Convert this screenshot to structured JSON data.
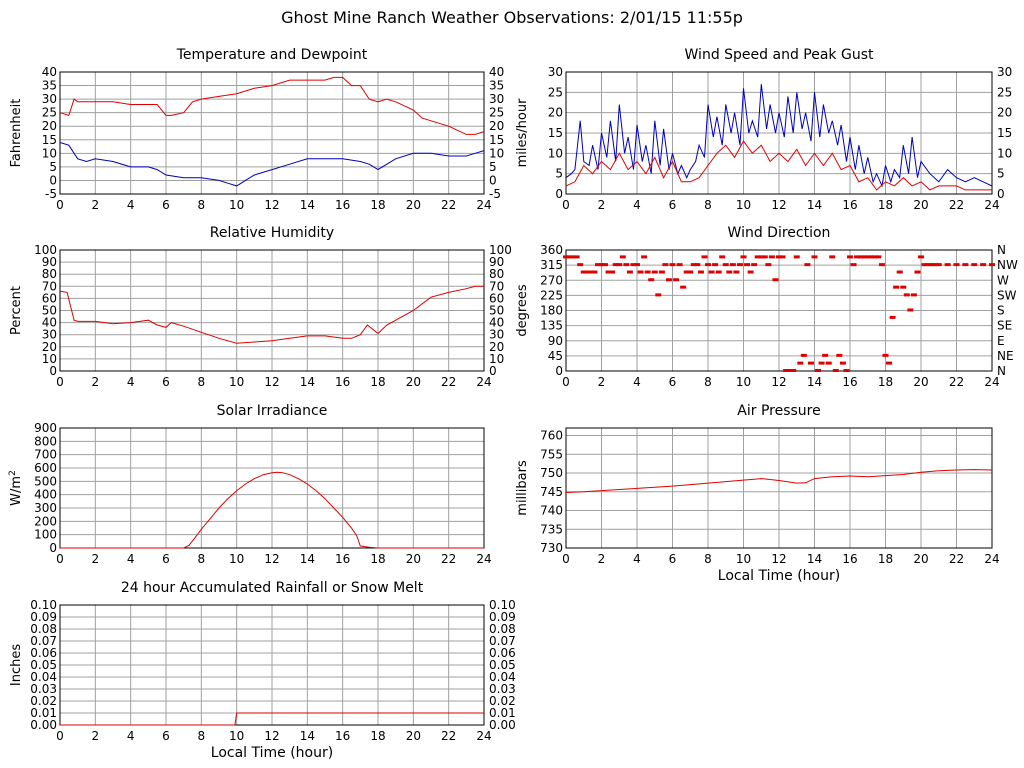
{
  "page": {
    "title": "Ghost Mine Ranch Weather Observations: 2/01/15 11:55p"
  },
  "colors": {
    "red": "#e00000",
    "blue": "#0000c0",
    "grid": "#a0a0a0",
    "axis": "#000000"
  },
  "chart_data": [
    {
      "id": "temperature",
      "type": "line",
      "title": "Temperature and Dewpoint",
      "ylabel": "Fahrenheit",
      "xlabel": "",
      "xlim": [
        0,
        24
      ],
      "ylim": [
        -5,
        40
      ],
      "xticks": [
        "0",
        "2",
        "4",
        "6",
        "8",
        "10",
        "12",
        "14",
        "16",
        "18",
        "20",
        "22",
        "24"
      ],
      "yticks": [
        "-5",
        "0",
        "5",
        "10",
        "15",
        "20",
        "25",
        "30",
        "35",
        "40"
      ],
      "right_axis": true,
      "grid": true,
      "series": [
        {
          "color": "red",
          "x": [
            0,
            0.5,
            0.8,
            1,
            1.5,
            2,
            3,
            4,
            5,
            5.5,
            6,
            6.3,
            7,
            7.5,
            8,
            9,
            10,
            11,
            12,
            13,
            14,
            15,
            15.5,
            16,
            16.5,
            17,
            17.5,
            18,
            18.5,
            19,
            20,
            20.5,
            21,
            22,
            23,
            23.5,
            24
          ],
          "y": [
            25,
            24,
            30,
            29,
            29,
            29,
            29,
            28,
            28,
            28,
            24,
            24,
            25,
            29,
            30,
            31,
            32,
            34,
            35,
            37,
            37,
            37,
            38,
            38,
            35,
            35,
            30,
            29,
            30,
            29,
            26,
            23,
            22,
            20,
            17,
            17,
            18
          ]
        },
        {
          "color": "blue",
          "x": [
            0,
            0.5,
            1,
            1.5,
            2,
            3,
            4,
            5,
            5.5,
            6,
            7,
            8,
            9,
            9.5,
            10,
            10.5,
            11,
            12,
            13,
            14,
            15,
            16,
            17,
            17.5,
            18,
            18.5,
            19,
            20,
            21,
            22,
            23,
            23.5,
            24
          ],
          "y": [
            14,
            13,
            8,
            7,
            8,
            7,
            5,
            5,
            4,
            2,
            1,
            1,
            0,
            -1,
            -2,
            0,
            2,
            4,
            6,
            8,
            8,
            8,
            7,
            6,
            4,
            6,
            8,
            10,
            10,
            9,
            9,
            10,
            11
          ]
        }
      ]
    },
    {
      "id": "wind_speed",
      "type": "line",
      "title": "Wind Speed and Peak Gust",
      "ylabel": "miles/hour",
      "xlabel": "",
      "xlim": [
        0,
        24
      ],
      "ylim": [
        0,
        30
      ],
      "xticks": [
        "0",
        "2",
        "4",
        "6",
        "8",
        "10",
        "12",
        "14",
        "16",
        "18",
        "20",
        "22",
        "24"
      ],
      "yticks": [
        "0",
        "5",
        "10",
        "15",
        "20",
        "25",
        "30"
      ],
      "right_axis": true,
      "grid": true,
      "series": [
        {
          "color": "blue",
          "x": [
            0,
            0.3,
            0.5,
            0.8,
            1,
            1.3,
            1.5,
            1.8,
            2,
            2.3,
            2.5,
            2.8,
            3,
            3.3,
            3.5,
            3.8,
            4,
            4.3,
            4.5,
            4.8,
            5,
            5.3,
            5.5,
            5.8,
            6,
            6.3,
            6.5,
            6.8,
            7,
            7.3,
            7.5,
            7.8,
            8,
            8.3,
            8.5,
            8.8,
            9,
            9.3,
            9.5,
            9.8,
            10,
            10.3,
            10.5,
            10.8,
            11,
            11.3,
            11.5,
            11.8,
            12,
            12.3,
            12.5,
            12.8,
            13,
            13.3,
            13.5,
            13.8,
            14,
            14.3,
            14.5,
            14.8,
            15,
            15.3,
            15.5,
            15.8,
            16,
            16.3,
            16.5,
            16.8,
            17,
            17.3,
            17.5,
            17.8,
            18,
            18.3,
            18.5,
            18.8,
            19,
            19.3,
            19.5,
            19.8,
            20,
            20.5,
            21,
            21.5,
            22,
            22.5,
            23,
            23.5,
            24
          ],
          "y": [
            4,
            5,
            6,
            18,
            8,
            7,
            12,
            6,
            15,
            9,
            18,
            8,
            22,
            10,
            14,
            6,
            17,
            8,
            12,
            5,
            18,
            7,
            16,
            6,
            10,
            5,
            7,
            4,
            6,
            8,
            12,
            9,
            22,
            14,
            19,
            12,
            22,
            15,
            20,
            12,
            26,
            15,
            18,
            14,
            27,
            16,
            22,
            15,
            20,
            14,
            24,
            15,
            25,
            16,
            20,
            13,
            25,
            14,
            22,
            15,
            18,
            12,
            17,
            8,
            14,
            6,
            12,
            5,
            9,
            3,
            5,
            2,
            7,
            3,
            6,
            4,
            12,
            5,
            14,
            4,
            8,
            5,
            3,
            6,
            4,
            3,
            4,
            3,
            2
          ]
        },
        {
          "color": "red",
          "x": [
            0,
            0.5,
            1,
            1.5,
            2,
            2.5,
            3,
            3.5,
            4,
            4.5,
            5,
            5.5,
            6,
            6.5,
            7,
            7.5,
            8,
            8.5,
            9,
            9.5,
            10,
            10.5,
            11,
            11.5,
            12,
            12.5,
            13,
            13.5,
            14,
            14.5,
            15,
            15.5,
            16,
            16.5,
            17,
            17.5,
            18,
            18.5,
            19,
            19.5,
            20,
            20.5,
            21,
            21.5,
            22,
            22.5,
            23,
            23.5,
            24
          ],
          "y": [
            2,
            3,
            7,
            5,
            8,
            6,
            10,
            6,
            8,
            5,
            9,
            4,
            8,
            3,
            3,
            4,
            7,
            10,
            12,
            9,
            13,
            10,
            12,
            8,
            10,
            8,
            11,
            7,
            10,
            7,
            10,
            6,
            7,
            3,
            4,
            1,
            3,
            2,
            4,
            2,
            3,
            1,
            2,
            2,
            2,
            1,
            1,
            1,
            1
          ]
        }
      ]
    },
    {
      "id": "humidity",
      "type": "line",
      "title": "Relative Humidity",
      "ylabel": "Percent",
      "xlabel": "",
      "xlim": [
        0,
        24
      ],
      "ylim": [
        0,
        100
      ],
      "xticks": [
        "0",
        "2",
        "4",
        "6",
        "8",
        "10",
        "12",
        "14",
        "16",
        "18",
        "20",
        "22",
        "24"
      ],
      "yticks": [
        "0",
        "10",
        "20",
        "30",
        "40",
        "50",
        "60",
        "70",
        "80",
        "90",
        "100"
      ],
      "right_axis": true,
      "grid": true,
      "series": [
        {
          "color": "red",
          "x": [
            0,
            0.4,
            0.8,
            1,
            2,
            3,
            4,
            5,
            5.5,
            6,
            6.3,
            7,
            8,
            9,
            10,
            11,
            12,
            13,
            14,
            15,
            16,
            16.5,
            17,
            17.4,
            18,
            18.5,
            19,
            20,
            21,
            22,
            23,
            23.5,
            24
          ],
          "y": [
            66,
            65,
            42,
            41,
            41,
            39,
            40,
            42,
            38,
            36,
            40,
            37,
            32,
            27,
            23,
            24,
            25,
            27,
            29,
            29,
            27,
            27,
            30,
            38,
            31,
            38,
            42,
            50,
            61,
            65,
            68,
            70,
            70
          ]
        }
      ]
    },
    {
      "id": "wind_direction",
      "type": "scatter",
      "title": "Wind Direction",
      "ylabel": "degrees",
      "xlabel": "",
      "xlim": [
        0,
        24
      ],
      "ylim": [
        0,
        360
      ],
      "xticks": [
        "0",
        "2",
        "4",
        "6",
        "8",
        "10",
        "12",
        "14",
        "16",
        "18",
        "20",
        "22",
        "24"
      ],
      "yticks": [
        "0",
        "45",
        "90",
        "135",
        "180",
        "225",
        "270",
        "315",
        "360"
      ],
      "right_labels": [
        "N",
        "NE",
        "E",
        "SE",
        "S",
        "SW",
        "W",
        "NW",
        "N"
      ],
      "grid": true,
      "series": [
        {
          "color": "red",
          "x": [
            0,
            0.2,
            0.4,
            0.6,
            0.8,
            1.0,
            1.2,
            1.4,
            1.6,
            1.8,
            2.0,
            2.2,
            2.4,
            2.6,
            2.8,
            3.0,
            3.2,
            3.4,
            3.6,
            3.8,
            4.0,
            4.2,
            4.4,
            4.6,
            4.8,
            5.0,
            5.2,
            5.4,
            5.6,
            5.8,
            6.0,
            6.2,
            6.4,
            6.6,
            6.8,
            7.0,
            7.2,
            7.4,
            7.6,
            7.8,
            8.0,
            8.2,
            8.4,
            8.6,
            8.8,
            9.0,
            9.2,
            9.4,
            9.6,
            9.8,
            10.0,
            10.2,
            10.4,
            10.6,
            10.8,
            11.0,
            11.2,
            11.4,
            11.6,
            11.8,
            12.0,
            12.2,
            12.4,
            12.6,
            12.8,
            13.0,
            13.2,
            13.4,
            13.6,
            13.8,
            14.0,
            14.2,
            14.4,
            14.6,
            14.8,
            15.0,
            15.2,
            15.4,
            15.6,
            15.8,
            16.0,
            16.2,
            16.4,
            16.6,
            16.8,
            17.0,
            17.2,
            17.4,
            17.6,
            17.8,
            18.0,
            18.2,
            18.4,
            18.6,
            18.8,
            19.0,
            19.2,
            19.4,
            19.6,
            19.8,
            20.0,
            20.2,
            20.4,
            20.6,
            20.8,
            21.0,
            21.5,
            22.0,
            22.5,
            23.0,
            23.5,
            24.0
          ],
          "y": [
            338,
            338,
            338,
            338,
            315,
            293,
            293,
            293,
            293,
            315,
            315,
            315,
            293,
            293,
            315,
            315,
            338,
            315,
            293,
            315,
            315,
            293,
            338,
            293,
            270,
            293,
            225,
            293,
            315,
            270,
            315,
            270,
            315,
            248,
            293,
            293,
            315,
            315,
            293,
            338,
            315,
            293,
            315,
            293,
            338,
            315,
            293,
            315,
            293,
            315,
            338,
            315,
            293,
            315,
            338,
            338,
            338,
            315,
            338,
            270,
            338,
            338,
            0,
            0,
            0,
            338,
            22,
            45,
            315,
            22,
            338,
            0,
            22,
            45,
            22,
            338,
            0,
            45,
            22,
            0,
            338,
            315,
            338,
            338,
            338,
            338,
            338,
            338,
            338,
            315,
            45,
            22,
            158,
            248,
            293,
            248,
            225,
            180,
            225,
            293,
            338,
            315,
            315,
            315,
            315,
            315,
            315,
            315,
            315,
            315,
            315,
            315
          ]
        }
      ]
    },
    {
      "id": "solar",
      "type": "line",
      "title": "Solar Irradiance",
      "ylabel": "W/m2",
      "xlabel": "",
      "xlim": [
        0,
        24
      ],
      "ylim": [
        0,
        900
      ],
      "xticks": [
        "0",
        "2",
        "4",
        "6",
        "8",
        "10",
        "12",
        "14",
        "16",
        "18",
        "20",
        "22",
        "24"
      ],
      "yticks": [
        "0",
        "100",
        "200",
        "300",
        "400",
        "500",
        "600",
        "700",
        "800",
        "900"
      ],
      "right_axis": false,
      "grid": true,
      "series": [
        {
          "color": "red",
          "x": [
            0,
            7,
            7.3,
            7.6,
            8,
            8.5,
            9,
            9.5,
            10,
            10.5,
            11,
            11.5,
            12,
            12.3,
            12.6,
            13,
            13.5,
            14,
            14.5,
            15,
            15.5,
            16,
            16.5,
            16.8,
            17,
            17.5,
            18,
            24
          ],
          "y": [
            0,
            0,
            20,
            70,
            140,
            220,
            300,
            370,
            430,
            480,
            520,
            550,
            565,
            568,
            565,
            550,
            520,
            480,
            430,
            370,
            300,
            230,
            150,
            90,
            15,
            5,
            0,
            0
          ]
        }
      ]
    },
    {
      "id": "pressure",
      "type": "line",
      "title": "Air Pressure",
      "ylabel": "millibars",
      "xlabel": "Local Time (hour)",
      "xlim": [
        0,
        24
      ],
      "ylim": [
        730,
        762
      ],
      "xticks": [
        "0",
        "2",
        "4",
        "6",
        "8",
        "10",
        "12",
        "14",
        "16",
        "18",
        "20",
        "22",
        "24"
      ],
      "yticks": [
        "730",
        "735",
        "740",
        "745",
        "750",
        "755",
        "760"
      ],
      "right_axis": false,
      "grid": true,
      "series": [
        {
          "color": "red",
          "x": [
            0,
            1,
            2,
            3,
            4,
            5,
            6,
            7,
            8,
            9,
            10,
            11,
            12,
            13,
            13.5,
            14,
            15,
            16,
            17,
            18,
            19,
            20,
            21,
            22,
            23,
            24
          ],
          "y": [
            744.8,
            745.0,
            745.3,
            745.6,
            745.9,
            746.2,
            746.5,
            746.9,
            747.3,
            747.7,
            748.1,
            748.5,
            748.0,
            747.3,
            747.4,
            748.5,
            749.0,
            749.2,
            749.0,
            749.3,
            749.6,
            750.2,
            750.6,
            750.8,
            750.9,
            750.8
          ]
        }
      ]
    },
    {
      "id": "rainfall",
      "type": "line",
      "title": "24 hour Accumulated Rainfall or Snow Melt",
      "ylabel": "Inches",
      "xlabel": "Local Time (hour)",
      "xlim": [
        0,
        24
      ],
      "ylim": [
        0,
        0.1
      ],
      "xticks": [
        "0",
        "2",
        "4",
        "6",
        "8",
        "10",
        "12",
        "14",
        "16",
        "18",
        "20",
        "22",
        "24"
      ],
      "yticks": [
        "0.00",
        "0.01",
        "0.02",
        "0.03",
        "0.04",
        "0.05",
        "0.06",
        "0.07",
        "0.08",
        "0.09",
        "0.10"
      ],
      "right_axis": true,
      "grid": true,
      "series": [
        {
          "color": "red",
          "x": [
            0,
            9.9,
            10.0,
            24
          ],
          "y": [
            0,
            0,
            0.01,
            0.01
          ]
        }
      ]
    }
  ]
}
